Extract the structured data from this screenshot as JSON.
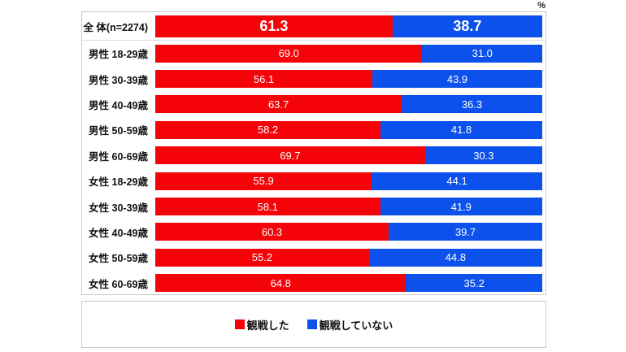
{
  "unit_label": "%",
  "chart_data": {
    "type": "bar",
    "orientation": "horizontal",
    "stacked": true,
    "percent_total": 100,
    "xlim": [
      0,
      100
    ],
    "value_unit": "%",
    "value_decimals": 1,
    "grid": false,
    "legend_position": "bottom",
    "categories": [
      "全 体(n=2274)",
      "男性 18-29歳",
      "男性 30-39歳",
      "男性 40-49歳",
      "男性 50-59歳",
      "男性 60-69歳",
      "女性 18-29歳",
      "女性 30-39歳",
      "女性 40-49歳",
      "女性 50-59歳",
      "女性 60-69歳"
    ],
    "series": [
      {
        "name": "観戦した",
        "color": "#f40309",
        "values": [
          61.3,
          69.0,
          56.1,
          63.7,
          58.2,
          69.7,
          55.9,
          58.1,
          60.3,
          55.2,
          64.8
        ]
      },
      {
        "name": "観戦していない",
        "color": "#0c51ec",
        "values": [
          38.7,
          31.0,
          43.9,
          36.3,
          41.8,
          30.3,
          44.1,
          41.9,
          39.7,
          44.8,
          35.2
        ]
      }
    ]
  },
  "colors": {
    "watched": "#f40309",
    "not_watched": "#0c51ec",
    "box_border": "#c9c9c9",
    "row_separator": "#dddddd",
    "value_text": "#ffffff",
    "label_text": "#111111"
  }
}
